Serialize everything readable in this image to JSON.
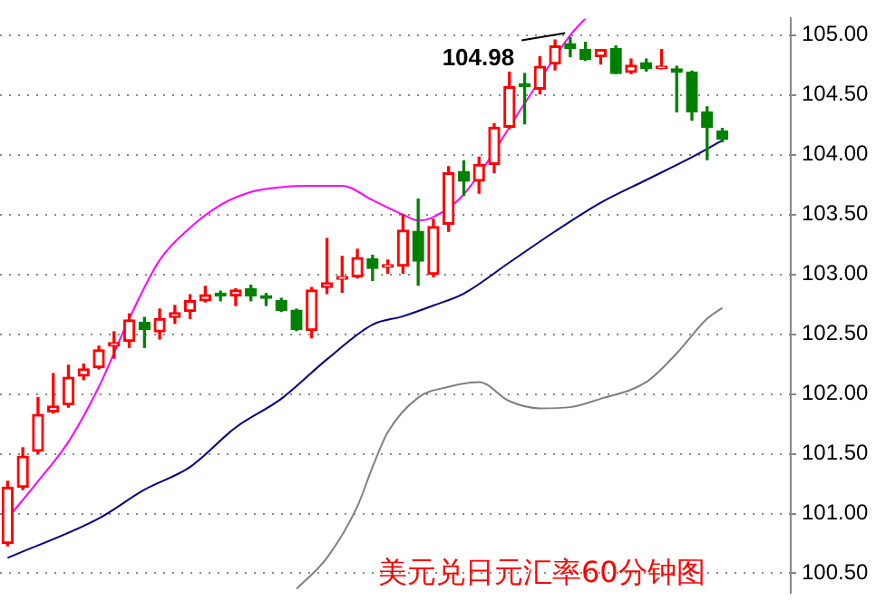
{
  "chart_data": {
    "type": "candlestick",
    "title": "美元兑日元汇率60分钟图",
    "categories": [
      null,
      null,
      null,
      null,
      null,
      null,
      null,
      null,
      null,
      null,
      null,
      null,
      null,
      null,
      null,
      null,
      null,
      null,
      null,
      null,
      null,
      null,
      null,
      null,
      null,
      null,
      null,
      null,
      null,
      null,
      null,
      null,
      null,
      null,
      null,
      null,
      null,
      null,
      null,
      null,
      null,
      null,
      null,
      null,
      null,
      null,
      null,
      null
    ],
    "ohlc": [
      [
        100.75,
        101.27,
        100.73,
        101.22
      ],
      [
        101.22,
        101.55,
        101.2,
        101.48
      ],
      [
        101.52,
        101.97,
        101.5,
        101.83
      ],
      [
        101.85,
        102.17,
        101.84,
        101.9
      ],
      [
        101.91,
        102.24,
        101.89,
        102.14
      ],
      [
        102.15,
        102.25,
        102.12,
        102.21
      ],
      [
        102.22,
        102.4,
        102.21,
        102.37
      ],
      [
        102.4,
        102.52,
        102.3,
        102.43
      ],
      [
        102.44,
        102.67,
        102.39,
        102.62
      ],
      [
        102.6,
        102.64,
        102.39,
        102.54
      ],
      [
        102.52,
        102.71,
        102.46,
        102.63
      ],
      [
        102.64,
        102.74,
        102.59,
        102.68
      ],
      [
        102.69,
        102.83,
        102.63,
        102.78
      ],
      [
        102.78,
        102.9,
        102.77,
        102.83
      ],
      [
        102.83,
        102.86,
        102.78,
        102.82
      ],
      [
        102.82,
        102.88,
        102.74,
        102.87
      ],
      [
        102.88,
        102.91,
        102.78,
        102.82
      ],
      [
        102.81,
        102.84,
        102.74,
        102.8
      ],
      [
        102.78,
        102.8,
        102.69,
        102.7
      ],
      [
        102.7,
        102.71,
        102.53,
        102.54
      ],
      [
        102.53,
        102.89,
        102.47,
        102.87
      ],
      [
        102.89,
        103.3,
        102.84,
        102.93
      ],
      [
        102.96,
        103.15,
        102.85,
        102.97
      ],
      [
        102.98,
        103.21,
        102.97,
        103.14
      ],
      [
        103.13,
        103.16,
        102.95,
        103.05
      ],
      [
        103.06,
        103.12,
        103.01,
        103.07
      ],
      [
        103.07,
        103.5,
        103.01,
        103.37
      ],
      [
        103.36,
        103.63,
        102.91,
        103.11
      ],
      [
        103.0,
        103.46,
        102.98,
        103.4
      ],
      [
        103.42,
        103.9,
        103.36,
        103.85
      ],
      [
        103.86,
        103.95,
        103.66,
        103.78
      ],
      [
        103.78,
        103.98,
        103.68,
        103.92
      ],
      [
        103.92,
        104.26,
        103.85,
        104.23
      ],
      [
        104.23,
        104.69,
        104.22,
        104.57
      ],
      [
        104.58,
        104.68,
        104.26,
        104.57
      ],
      [
        104.55,
        104.82,
        104.51,
        104.74
      ],
      [
        104.76,
        104.96,
        104.71,
        104.91
      ],
      [
        104.93,
        104.98,
        104.82,
        104.89
      ],
      [
        104.88,
        104.94,
        104.79,
        104.8
      ],
      [
        104.82,
        104.88,
        104.76,
        104.88
      ],
      [
        104.89,
        104.91,
        104.68,
        104.68
      ],
      [
        104.69,
        104.8,
        104.68,
        104.75
      ],
      [
        104.77,
        104.8,
        104.7,
        104.72
      ],
      [
        104.72,
        104.88,
        104.72,
        104.73
      ],
      [
        104.72,
        104.74,
        104.36,
        104.69
      ],
      [
        104.69,
        104.7,
        104.29,
        104.36
      ],
      [
        104.36,
        104.4,
        103.96,
        104.23
      ],
      [
        104.2,
        104.22,
        104.11,
        104.13
      ]
    ],
    "colors": [
      "#ff0000",
      "#ff0000",
      "#ff0000",
      "#ff0000",
      "#ff0000",
      "#ff0000",
      "#ff0000",
      "#ff0000",
      "#ff0000",
      "#008000",
      "#ff0000",
      "#ff0000",
      "#ff0000",
      "#ff0000",
      "#008000",
      "#ff0000",
      "#008000",
      "#008000",
      "#008000",
      "#008000",
      "#ff0000",
      "#ff0000",
      "#ff0000",
      "#ff0000",
      "#008000",
      "#ff0000",
      "#ff0000",
      "#008000",
      "#ff0000",
      "#ff0000",
      "#008000",
      "#ff0000",
      "#ff0000",
      "#ff0000",
      "#008000",
      "#ff0000",
      "#ff0000",
      "#008000",
      "#008000",
      "#ff0000",
      "#008000",
      "#ff0000",
      "#008000",
      "#ff0000",
      "#008000",
      "#008000",
      "#008000",
      "#008000"
    ],
    "series": [
      {
        "type": "line",
        "color": "#ff00ff",
        "values": [
          100.96,
          null,
          101.27,
          null,
          101.6,
          null,
          102.06,
          null,
          102.63,
          null,
          103.12,
          null,
          103.39,
          null,
          103.58,
          null,
          103.69,
          null,
          103.73,
          null,
          103.74,
          null,
          103.74,
          null,
          103.62,
          null,
          103.5,
          103.45,
          103.48,
          null,
          103.67,
          null,
          null,
          null,
          104.43,
          null,
          null,
          105.0,
          105.14,
          null,
          null,
          null,
          null,
          null,
          null,
          null,
          null,
          null
        ]
      },
      {
        "type": "line",
        "color": "#000080",
        "values": [
          100.63,
          null,
          null,
          null,
          null,
          null,
          100.96,
          null,
          null,
          101.2,
          null,
          null,
          101.39,
          null,
          null,
          101.72,
          null,
          null,
          101.96,
          null,
          null,
          102.29,
          null,
          null,
          102.58,
          null,
          102.65,
          null,
          102.74,
          null,
          102.84,
          null,
          null,
          103.1,
          null,
          null,
          103.36,
          null,
          null,
          103.6,
          null,
          null,
          103.79,
          null,
          null,
          103.98,
          null,
          104.12
        ]
      },
      {
        "type": "line",
        "color": "#808080",
        "values": [
          null,
          null,
          null,
          null,
          null,
          null,
          null,
          null,
          null,
          null,
          null,
          null,
          null,
          null,
          null,
          null,
          null,
          null,
          null,
          100.37,
          null,
          100.63,
          null,
          101.06,
          101.39,
          101.68,
          null,
          101.97,
          null,
          102.06,
          null,
          102.1,
          null,
          101.94,
          null,
          101.88,
          null,
          101.89,
          null,
          101.96,
          null,
          null,
          102.1,
          null,
          102.34,
          null,
          102.63,
          102.72
        ]
      }
    ],
    "ylim": [
      100.34,
      105.14
    ],
    "yticks": [
      {
        "value": 100.5,
        "label": "100.50"
      },
      {
        "value": 101,
        "label": "101.00"
      },
      {
        "value": 101.5,
        "label": "101.50"
      },
      {
        "value": 102,
        "label": "102.00"
      },
      {
        "value": 102.5,
        "label": "102.50"
      },
      {
        "value": 103,
        "label": "103.00"
      },
      {
        "value": 103.5,
        "label": "103.50"
      },
      {
        "value": 104,
        "label": "104.00"
      },
      {
        "value": 104.5,
        "label": "104.50"
      },
      {
        "value": 105,
        "label": "105.00"
      }
    ],
    "tick_labels": "y",
    "grid": "y",
    "legend": false,
    "marker": "none",
    "annotations": [
      "104.98"
    ]
  }
}
